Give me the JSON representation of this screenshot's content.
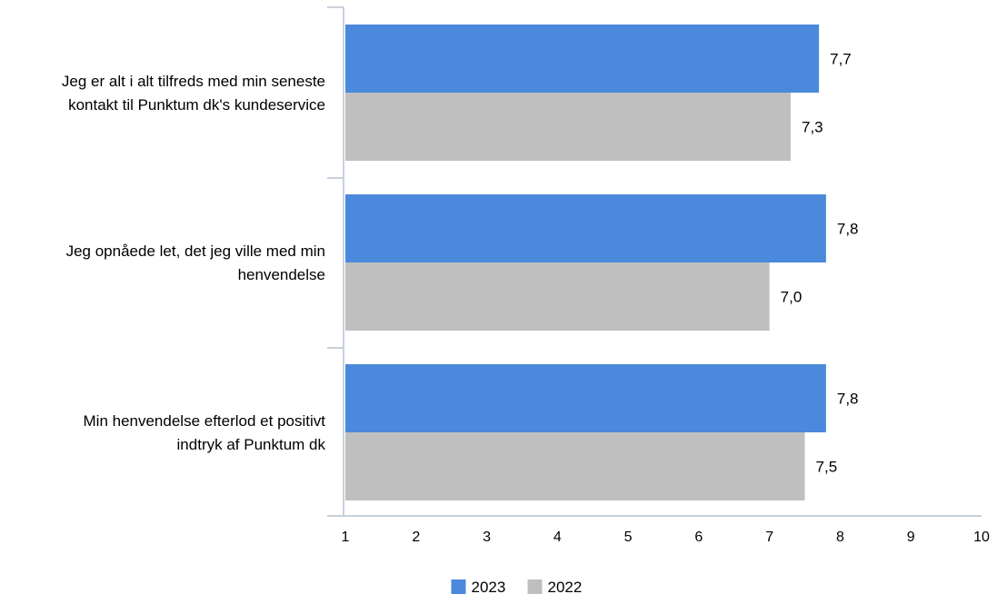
{
  "chart_data": {
    "type": "bar",
    "orientation": "horizontal",
    "categories": [
      [
        "Jeg er alt i alt tilfreds med min seneste",
        "kontakt til Punktum dk's kundeservice"
      ],
      [
        "Jeg opnåede let, det jeg ville med min",
        "henvendelse"
      ],
      [
        "Min henvendelse efterlod et positivt",
        "indtryk af Punktum dk"
      ]
    ],
    "series": [
      {
        "name": "2023",
        "color": "#4a89dc",
        "values": [
          7.7,
          7.8,
          7.8
        ],
        "labels": [
          "7,7",
          "7,8",
          "7,8"
        ]
      },
      {
        "name": "2022",
        "color": "#bfbfbf",
        "values": [
          7.3,
          7.0,
          7.5
        ],
        "labels": [
          "7,3",
          "7,0",
          "7,5"
        ]
      }
    ],
    "xlim": [
      1,
      10
    ],
    "xticks": [
      1,
      2,
      3,
      4,
      5,
      6,
      7,
      8,
      9,
      10
    ],
    "xtick_labels": [
      "1",
      "2",
      "3",
      "4",
      "5",
      "6",
      "7",
      "8",
      "9",
      "10"
    ],
    "grid": false,
    "legend_position": "bottom-center",
    "axis_color": "#c8d0dc"
  }
}
